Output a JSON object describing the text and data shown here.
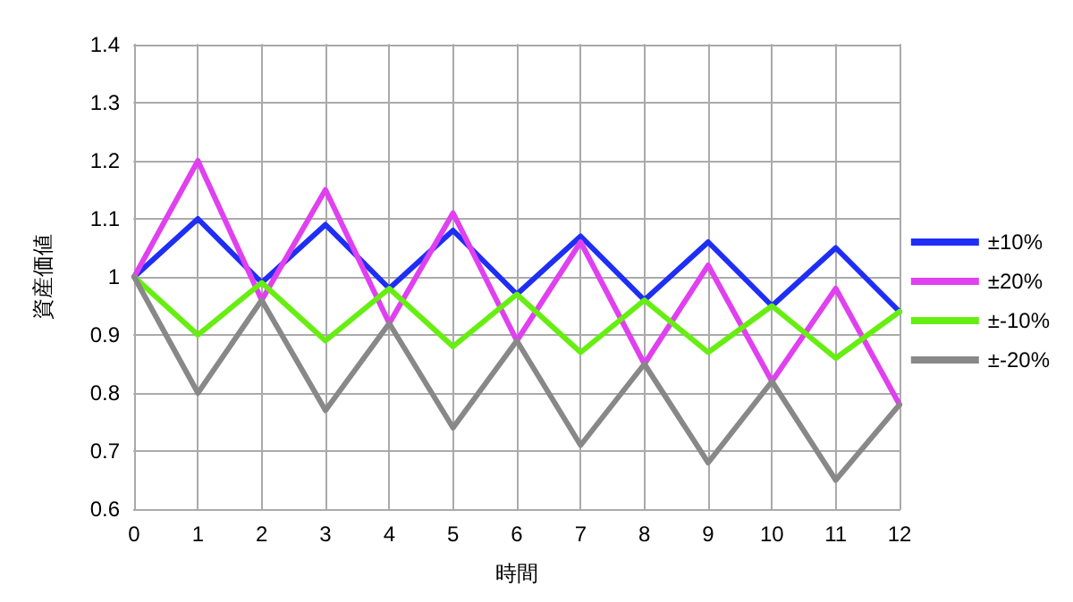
{
  "chart_data": {
    "type": "line",
    "xlabel": "時間",
    "ylabel": "資産価値",
    "x": [
      0,
      1,
      2,
      3,
      4,
      5,
      6,
      7,
      8,
      9,
      10,
      11,
      12
    ],
    "series": [
      {
        "name": "±10%",
        "color": "#1f2ef5",
        "values": [
          1,
          1.1,
          0.99,
          1.09,
          0.98,
          1.08,
          0.97,
          1.07,
          0.96,
          1.06,
          0.95,
          1.05,
          0.94
        ]
      },
      {
        "name": "±20%",
        "color": "#e040f0",
        "values": [
          1,
          1.2,
          0.96,
          1.15,
          0.92,
          1.11,
          0.89,
          1.06,
          0.85,
          1.02,
          0.82,
          0.98,
          0.78
        ]
      },
      {
        "name": "±-10%",
        "color": "#66ee11",
        "values": [
          1,
          0.9,
          0.99,
          0.89,
          0.98,
          0.88,
          0.97,
          0.87,
          0.96,
          0.87,
          0.95,
          0.86,
          0.94
        ]
      },
      {
        "name": "±-20%",
        "color": "#888888",
        "values": [
          1,
          0.8,
          0.96,
          0.77,
          0.92,
          0.74,
          0.89,
          0.71,
          0.85,
          0.68,
          0.82,
          0.65,
          0.78
        ]
      }
    ],
    "xlim": [
      0,
      12
    ],
    "xticks": [
      0,
      1,
      2,
      3,
      4,
      5,
      6,
      7,
      8,
      9,
      10,
      11,
      12
    ],
    "ylim": [
      0.6,
      1.4
    ],
    "yticks": [
      0.6,
      0.7,
      0.8,
      0.9,
      1,
      1.1,
      1.2,
      1.3,
      1.4
    ],
    "grid": true,
    "legend": "right",
    "marker": "none",
    "line_style": "solid"
  }
}
